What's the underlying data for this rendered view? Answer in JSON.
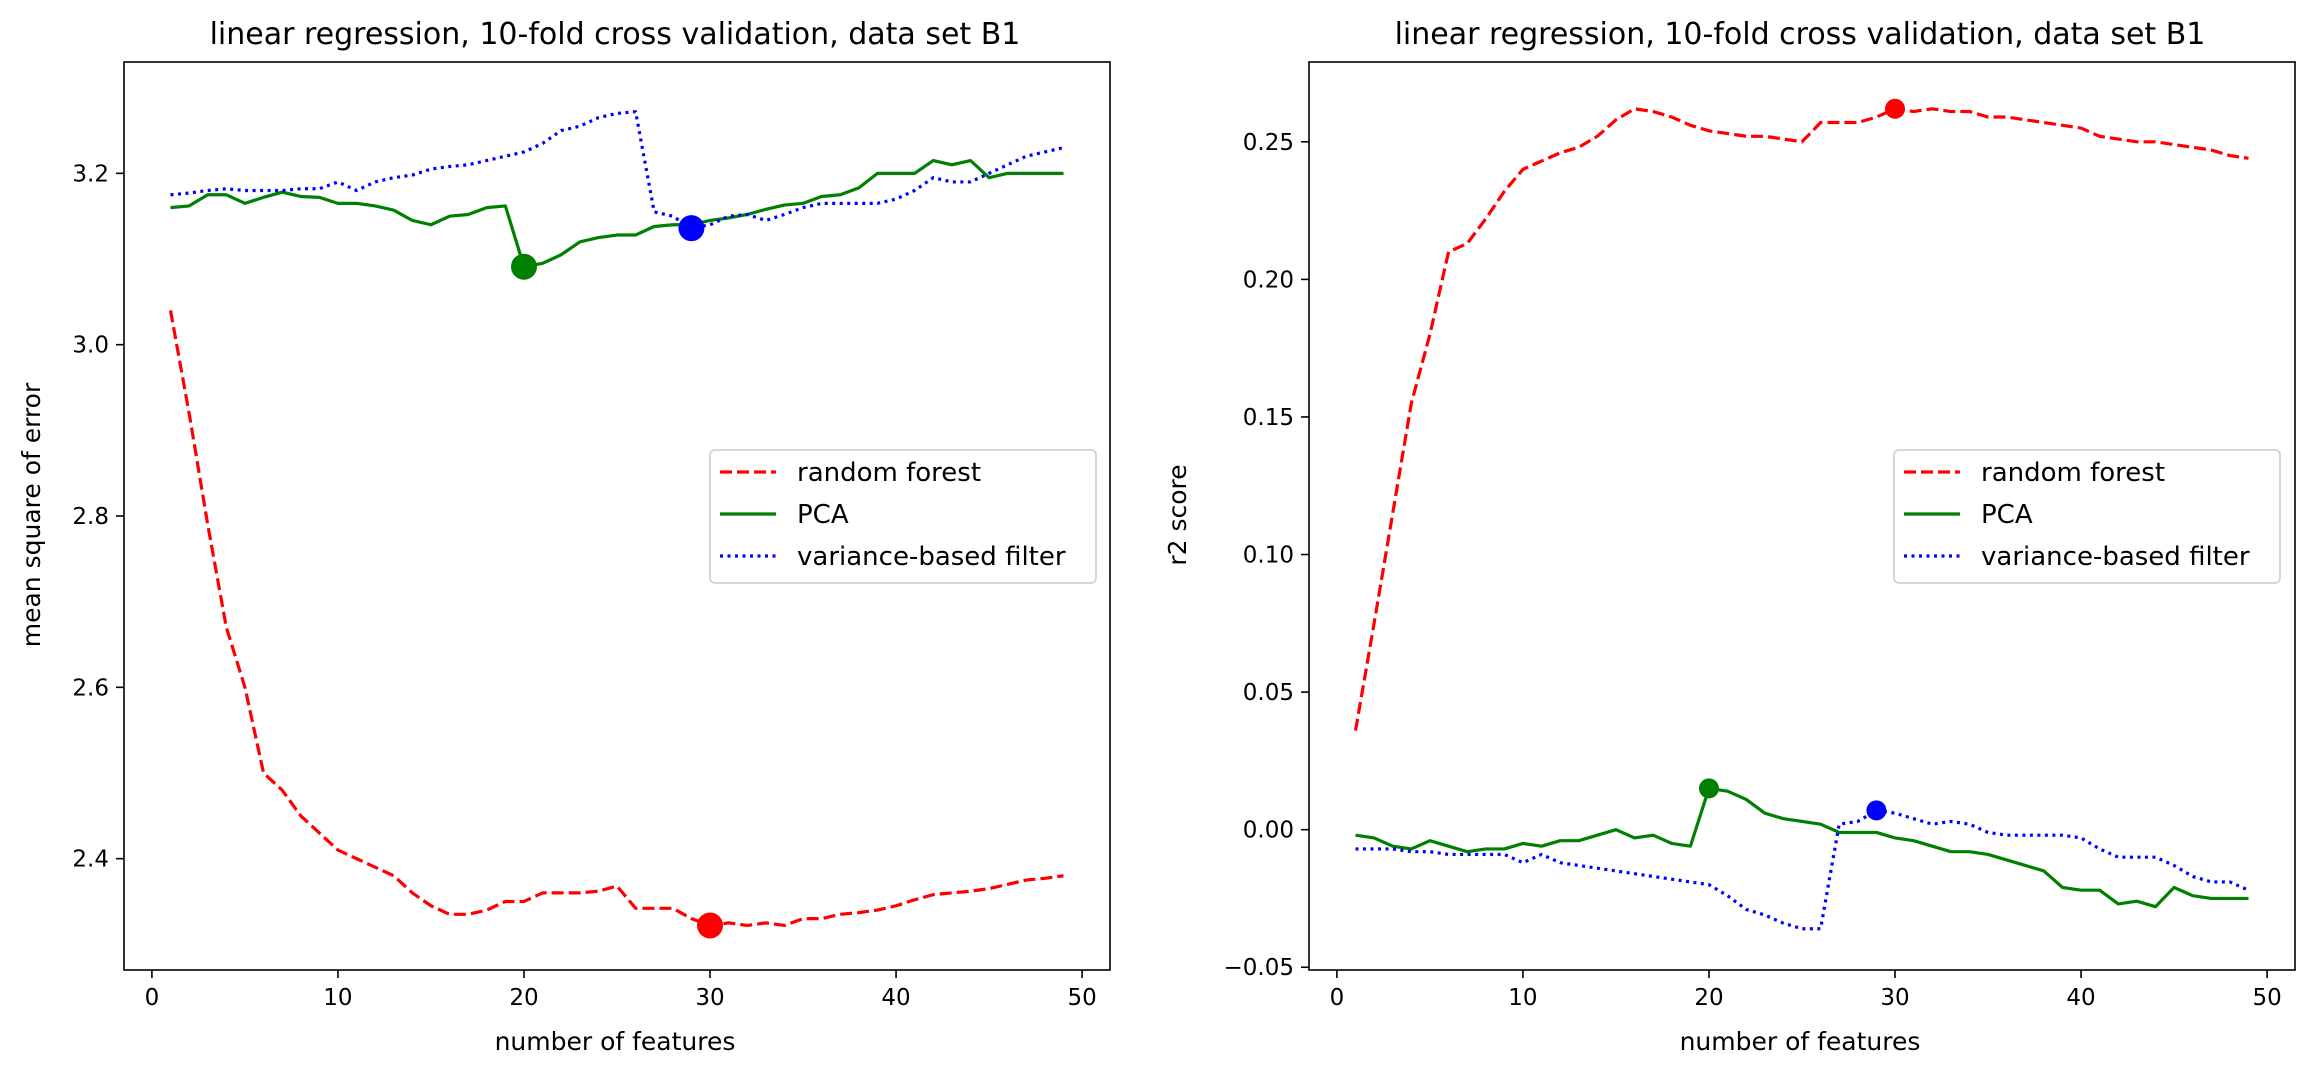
{
  "chart_data": [
    {
      "type": "line",
      "title": "linear regression, 10-fold cross validation, data set B1",
      "xlabel": "number of features",
      "ylabel": "mean square of error",
      "xlim": [
        -1.5,
        51.5
      ],
      "ylim": [
        2.27,
        3.33
      ],
      "xticks": [
        0,
        10,
        20,
        30,
        40,
        50
      ],
      "yticks": [
        2.4,
        2.6,
        2.8,
        3.0,
        3.2
      ],
      "xtick_labels": [
        "0",
        "10",
        "20",
        "30",
        "40",
        "50"
      ],
      "ytick_labels": [
        "2.4",
        "2.6",
        "2.8",
        "3.0",
        "3.2"
      ],
      "legend_position": "right",
      "x": [
        1,
        2,
        3,
        4,
        5,
        6,
        7,
        8,
        9,
        10,
        11,
        12,
        13,
        14,
        15,
        16,
        17,
        18,
        19,
        20,
        21,
        22,
        23,
        24,
        25,
        26,
        27,
        28,
        29,
        30,
        31,
        32,
        33,
        34,
        35,
        36,
        37,
        38,
        39,
        40,
        41,
        42,
        43,
        44,
        45,
        46,
        47,
        48,
        49
      ],
      "series": [
        {
          "name": "random forest",
          "color": "#ff0000",
          "style": "dashed",
          "values": [
            3.04,
            2.92,
            2.79,
            2.67,
            2.6,
            2.5,
            2.48,
            2.45,
            2.43,
            2.41,
            2.4,
            2.39,
            2.38,
            2.36,
            2.345,
            2.335,
            2.335,
            2.34,
            2.35,
            2.35,
            2.36,
            2.36,
            2.36,
            2.362,
            2.368,
            2.342,
            2.342,
            2.342,
            2.33,
            2.322,
            2.325,
            2.322,
            2.325,
            2.322,
            2.33,
            2.33,
            2.335,
            2.337,
            2.34,
            2.345,
            2.352,
            2.358,
            2.36,
            2.362,
            2.365,
            2.37,
            2.375,
            2.377,
            2.38
          ],
          "best": {
            "x": 30,
            "y": 2.322
          }
        },
        {
          "name": "PCA",
          "color": "#008000",
          "style": "solid",
          "values": [
            3.16,
            3.162,
            3.175,
            3.175,
            3.165,
            3.172,
            3.178,
            3.173,
            3.172,
            3.165,
            3.165,
            3.162,
            3.157,
            3.145,
            3.14,
            3.15,
            3.152,
            3.16,
            3.162,
            3.091,
            3.095,
            3.105,
            3.12,
            3.125,
            3.128,
            3.128,
            3.138,
            3.14,
            3.14,
            3.145,
            3.148,
            3.152,
            3.158,
            3.163,
            3.165,
            3.173,
            3.175,
            3.183,
            3.2,
            3.2,
            3.2,
            3.215,
            3.21,
            3.215,
            3.195,
            3.2,
            3.2,
            3.2,
            3.2
          ],
          "best": {
            "x": 20,
            "y": 3.091
          }
        },
        {
          "name": "variance-based filter",
          "color": "#0000ff",
          "style": "dotted",
          "values": [
            3.175,
            3.177,
            3.18,
            3.182,
            3.18,
            3.18,
            3.18,
            3.182,
            3.182,
            3.19,
            3.18,
            3.19,
            3.195,
            3.198,
            3.205,
            3.208,
            3.21,
            3.215,
            3.22,
            3.225,
            3.235,
            3.25,
            3.255,
            3.265,
            3.27,
            3.272,
            3.155,
            3.15,
            3.136,
            3.14,
            3.15,
            3.152,
            3.145,
            3.152,
            3.16,
            3.165,
            3.165,
            3.165,
            3.165,
            3.17,
            3.18,
            3.195,
            3.19,
            3.19,
            3.2,
            3.21,
            3.22,
            3.225,
            3.23
          ],
          "best": {
            "x": 29,
            "y": 3.136
          }
        }
      ]
    },
    {
      "type": "line",
      "title": "linear regression, 10-fold cross validation, data set B1",
      "xlabel": "number of features",
      "ylabel": "r2 score",
      "xlim": [
        -1.5,
        51.5
      ],
      "ylim": [
        -0.051,
        0.279
      ],
      "xticks": [
        0,
        10,
        20,
        30,
        40,
        50
      ],
      "yticks": [
        -0.05,
        0.0,
        0.05,
        0.1,
        0.15,
        0.2,
        0.25
      ],
      "xtick_labels": [
        "0",
        "10",
        "20",
        "30",
        "40",
        "50"
      ],
      "ytick_labels": [
        "−0.05",
        "0.00",
        "0.05",
        "0.10",
        "0.15",
        "0.20",
        "0.25"
      ],
      "legend_position": "right",
      "x": [
        1,
        2,
        3,
        4,
        5,
        6,
        7,
        8,
        9,
        10,
        11,
        12,
        13,
        14,
        15,
        16,
        17,
        18,
        19,
        20,
        21,
        22,
        23,
        24,
        25,
        26,
        27,
        28,
        29,
        30,
        31,
        32,
        33,
        34,
        35,
        36,
        37,
        38,
        39,
        40,
        41,
        42,
        43,
        44,
        45,
        46,
        47,
        48,
        49
      ],
      "series": [
        {
          "name": "random forest",
          "color": "#ff0000",
          "style": "dashed",
          "values": [
            0.036,
            0.075,
            0.115,
            0.155,
            0.18,
            0.21,
            0.213,
            0.222,
            0.232,
            0.24,
            0.243,
            0.246,
            0.248,
            0.252,
            0.258,
            0.262,
            0.261,
            0.259,
            0.256,
            0.254,
            0.253,
            0.252,
            0.252,
            0.251,
            0.25,
            0.257,
            0.257,
            0.257,
            0.259,
            0.262,
            0.261,
            0.262,
            0.261,
            0.261,
            0.259,
            0.259,
            0.258,
            0.257,
            0.256,
            0.255,
            0.252,
            0.251,
            0.25,
            0.25,
            0.249,
            0.248,
            0.247,
            0.245,
            0.244
          ],
          "best": {
            "x": 30,
            "y": 0.262
          }
        },
        {
          "name": "PCA",
          "color": "#008000",
          "style": "solid",
          "values": [
            -0.002,
            -0.003,
            -0.006,
            -0.007,
            -0.004,
            -0.006,
            -0.008,
            -0.007,
            -0.007,
            -0.005,
            -0.006,
            -0.004,
            -0.004,
            -0.002,
            0.0,
            -0.003,
            -0.002,
            -0.005,
            -0.006,
            0.015,
            0.014,
            0.011,
            0.006,
            0.004,
            0.003,
            0.002,
            -0.001,
            -0.001,
            -0.001,
            -0.003,
            -0.004,
            -0.006,
            -0.008,
            -0.008,
            -0.009,
            -0.011,
            -0.013,
            -0.015,
            -0.021,
            -0.022,
            -0.022,
            -0.027,
            -0.026,
            -0.028,
            -0.021,
            -0.024,
            -0.025,
            -0.025,
            -0.025
          ],
          "best": {
            "x": 20,
            "y": 0.015
          }
        },
        {
          "name": "variance-based filter",
          "color": "#0000ff",
          "style": "dotted",
          "values": [
            -0.007,
            -0.007,
            -0.007,
            -0.008,
            -0.008,
            -0.009,
            -0.009,
            -0.009,
            -0.009,
            -0.012,
            -0.009,
            -0.012,
            -0.013,
            -0.014,
            -0.015,
            -0.016,
            -0.017,
            -0.018,
            -0.019,
            -0.02,
            -0.024,
            -0.029,
            -0.031,
            -0.034,
            -0.036,
            -0.036,
            0.002,
            0.003,
            0.007,
            0.006,
            0.004,
            0.002,
            0.003,
            0.002,
            -0.001,
            -0.002,
            -0.002,
            -0.002,
            -0.002,
            -0.003,
            -0.007,
            -0.01,
            -0.01,
            -0.01,
            -0.013,
            -0.017,
            -0.019,
            -0.019,
            -0.022
          ],
          "best": {
            "x": 29,
            "y": 0.007
          }
        }
      ]
    }
  ]
}
